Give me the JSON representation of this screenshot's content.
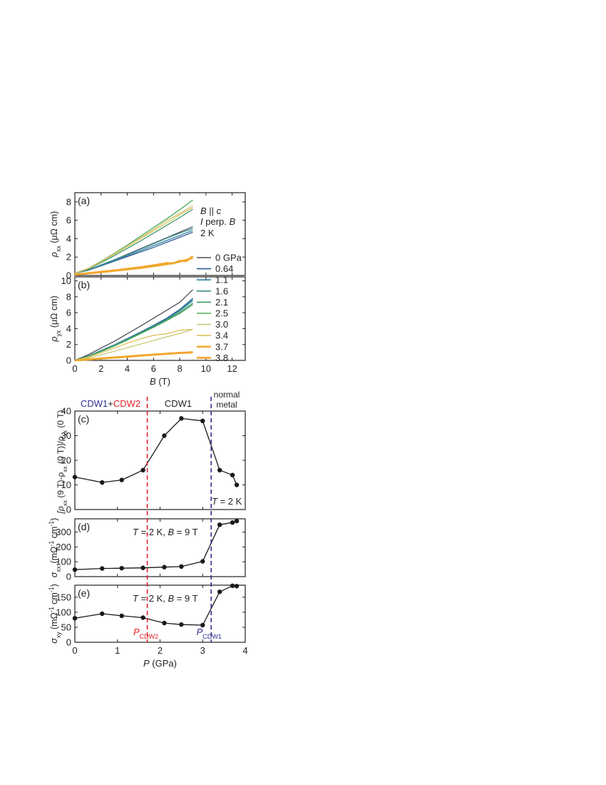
{
  "colors": {
    "axis": "#231f20",
    "red": "#e21f26",
    "blue": "#2e3192",
    "series": [
      "#4d4d5c",
      "#2e5a9c",
      "#2f7fa0",
      "#3a8f8a",
      "#3c9a6a",
      "#4aa85a",
      "#c9c97a",
      "#dcc15a",
      "#ecb03c",
      "#f4a52a"
    ]
  },
  "chart_data": [
    {
      "id": "a",
      "type": "line",
      "panel_label": "(a)",
      "ylabel_parts": [
        "ρ",
        "xx",
        " (μΩ cm)"
      ],
      "xlim": [
        0,
        13
      ],
      "ylim": [
        0,
        9
      ],
      "yticks": [
        0,
        2,
        4,
        6,
        8
      ],
      "annotation_lines": [
        "B || c",
        "I perp. B",
        "2 K"
      ],
      "series": [
        {
          "name": "0 GPa",
          "x": [
            0,
            1,
            2,
            3,
            4,
            5,
            6,
            7,
            8,
            9
          ],
          "y": [
            0.25,
            0.6,
            1.15,
            1.7,
            2.3,
            2.9,
            3.5,
            4.1,
            4.7,
            5.3
          ]
        },
        {
          "name": "0.64",
          "x": [
            0,
            1,
            2,
            3,
            4,
            5,
            6,
            7,
            8,
            9
          ],
          "y": [
            0.25,
            0.55,
            1.05,
            1.55,
            2.05,
            2.55,
            3.05,
            3.6,
            4.15,
            4.7
          ]
        },
        {
          "name": "1.1",
          "x": [
            0,
            1,
            2,
            3,
            4,
            5,
            6,
            7,
            8,
            9
          ],
          "y": [
            0.25,
            0.58,
            1.1,
            1.6,
            2.15,
            2.7,
            3.25,
            3.8,
            4.35,
            4.9
          ]
        },
        {
          "name": "1.6",
          "x": [
            0,
            1,
            2,
            3,
            4,
            5,
            6,
            7,
            8,
            9
          ],
          "y": [
            0.25,
            0.6,
            1.15,
            1.7,
            2.25,
            2.85,
            3.45,
            4.05,
            4.6,
            5.1
          ]
        },
        {
          "name": "2.1",
          "x": [
            0,
            1,
            2,
            3,
            4,
            5,
            6,
            7,
            8,
            9
          ],
          "y": [
            0.25,
            0.7,
            1.4,
            2.15,
            2.95,
            3.75,
            4.6,
            5.45,
            6.3,
            7.2
          ]
        },
        {
          "name": "2.5",
          "x": [
            0,
            1,
            2,
            3,
            4,
            5,
            6,
            7,
            8,
            9
          ],
          "y": [
            0.25,
            0.75,
            1.55,
            2.4,
            3.3,
            4.25,
            5.2,
            6.15,
            7.15,
            8.2
          ]
        },
        {
          "name": "3.0",
          "x": [
            0,
            1,
            2,
            3,
            4,
            5,
            6,
            7,
            8,
            9
          ],
          "y": [
            0.25,
            0.75,
            1.5,
            2.35,
            3.2,
            4.1,
            5.0,
            5.95,
            6.75,
            7.6
          ]
        },
        {
          "name": "3.4",
          "x": [
            0,
            1,
            2,
            3,
            4,
            5,
            6,
            7,
            8,
            9
          ],
          "y": [
            0.25,
            0.75,
            1.5,
            2.3,
            3.15,
            4.0,
            4.85,
            5.7,
            6.6,
            7.4
          ]
        },
        {
          "name": "3.7",
          "x": [
            0,
            1,
            2,
            3,
            4,
            5,
            6,
            7,
            8,
            9
          ],
          "y": [
            0.1,
            0.22,
            0.35,
            0.5,
            0.65,
            0.8,
            1.0,
            1.2,
            1.5,
            1.9
          ]
        },
        {
          "name": "3.8",
          "x": [
            0,
            1,
            2,
            3,
            4,
            5,
            6,
            7,
            7.5,
            8,
            8.5,
            9
          ],
          "y": [
            0.1,
            0.25,
            0.4,
            0.55,
            0.72,
            0.9,
            1.1,
            1.35,
            1.3,
            1.6,
            1.55,
            2.1
          ]
        }
      ]
    },
    {
      "id": "b",
      "type": "line",
      "panel_label": "(b)",
      "ylabel_parts": [
        "ρ",
        "yx",
        " (μΩ cm)"
      ],
      "xlabel_parts": [
        "B",
        " (T)"
      ],
      "xlim": [
        0,
        13
      ],
      "ylim": [
        0,
        10.5
      ],
      "xticks": [
        0,
        2,
        4,
        6,
        8,
        10,
        12
      ],
      "yticks": [
        0,
        2,
        4,
        6,
        8,
        10
      ],
      "series": [
        {
          "name": "0 GPa",
          "x": [
            0,
            1,
            2,
            3,
            4,
            5,
            6,
            7,
            8,
            9
          ],
          "y": [
            0,
            0.7,
            1.55,
            2.4,
            3.35,
            4.3,
            5.3,
            6.3,
            7.3,
            8.9
          ]
        },
        {
          "name": "0.64",
          "x": [
            0,
            1,
            2,
            3,
            4,
            5,
            6,
            7,
            8,
            9
          ],
          "y": [
            0,
            0.55,
            1.25,
            1.95,
            2.75,
            3.55,
            4.4,
            5.3,
            6.4,
            7.8
          ]
        },
        {
          "name": "1.1",
          "x": [
            0,
            1,
            2,
            3,
            4,
            5,
            6,
            7,
            8,
            9
          ],
          "y": [
            0,
            0.55,
            1.2,
            1.9,
            2.7,
            3.5,
            4.35,
            5.2,
            6.3,
            7.7
          ]
        },
        {
          "name": "1.6",
          "x": [
            0,
            1,
            2,
            3,
            4,
            5,
            6,
            7,
            8,
            9
          ],
          "y": [
            0,
            0.55,
            1.2,
            1.9,
            2.65,
            3.45,
            4.3,
            5.15,
            6.2,
            7.5
          ]
        },
        {
          "name": "2.1",
          "x": [
            0,
            1,
            2,
            3,
            4,
            5,
            6,
            7,
            8,
            9
          ],
          "y": [
            0,
            0.5,
            1.15,
            1.85,
            2.6,
            3.4,
            4.2,
            5.05,
            6.0,
            7.2
          ]
        },
        {
          "name": "2.5",
          "x": [
            0,
            1,
            2,
            3,
            4,
            5,
            6,
            7,
            8,
            9
          ],
          "y": [
            0,
            0.5,
            1.1,
            1.8,
            2.55,
            3.35,
            4.15,
            5.0,
            5.9,
            7.0
          ]
        },
        {
          "name": "3.0",
          "x": [
            0,
            1,
            2,
            3,
            4,
            5,
            6,
            7,
            8,
            9
          ],
          "y": [
            0,
            0.3,
            0.7,
            1.15,
            1.6,
            2.05,
            2.5,
            2.95,
            3.4,
            3.9
          ]
        },
        {
          "name": "3.4",
          "x": [
            0,
            1,
            2,
            3,
            4,
            5,
            6,
            7,
            8,
            9
          ],
          "y": [
            0,
            0.4,
            0.95,
            1.55,
            2.15,
            2.7,
            3.15,
            3.35,
            3.8,
            3.9
          ]
        },
        {
          "name": "3.7",
          "x": [
            0,
            1,
            2,
            3,
            4,
            5,
            6,
            7,
            8,
            9
          ],
          "y": [
            0,
            0.12,
            0.25,
            0.38,
            0.5,
            0.62,
            0.74,
            0.85,
            0.95,
            1.05
          ]
        },
        {
          "name": "3.8",
          "x": [
            0,
            1,
            2,
            3,
            4,
            5,
            6,
            7,
            8,
            9
          ],
          "y": [
            0,
            0.1,
            0.22,
            0.34,
            0.46,
            0.58,
            0.7,
            0.82,
            0.93,
            1.0
          ]
        }
      ]
    },
    {
      "id": "c",
      "type": "line",
      "panel_label": "(c)",
      "ylabel_parts": [
        "[ρ",
        "xx",
        " (9 T)-ρ",
        "xx",
        " (0 T)]/ρ",
        "xx",
        " (0 T)"
      ],
      "xlim": [
        0,
        4
      ],
      "ylim": [
        0,
        40
      ],
      "yticks": [
        0,
        10,
        20,
        30,
        40
      ],
      "annotation": "T = 2 K",
      "phase_labels": [
        "CDW1",
        "+",
        "CDW2",
        "CDW1",
        "normal",
        "metal"
      ],
      "series": [
        {
          "name": "",
          "x": [
            0,
            0.64,
            1.1,
            1.6,
            2.1,
            2.5,
            3.0,
            3.4,
            3.7,
            3.8
          ],
          "y": [
            13.2,
            11.0,
            12.0,
            16.0,
            30.0,
            37.0,
            36.0,
            16.0,
            14.0,
            10.0
          ]
        }
      ]
    },
    {
      "id": "d",
      "type": "line",
      "panel_label": "(d)",
      "ylabel_parts": [
        "σ",
        "xx",
        " (mΩ",
        "-1",
        " cm",
        "-1",
        ")"
      ],
      "xlim": [
        0,
        4
      ],
      "ylim": [
        0,
        390
      ],
      "yticks": [
        0,
        100,
        200,
        300
      ],
      "annotation": "T = 2 K, B = 9 T",
      "series": [
        {
          "name": "",
          "x": [
            0,
            0.64,
            1.1,
            1.6,
            2.1,
            2.5,
            3.0,
            3.4,
            3.7,
            3.8
          ],
          "y": [
            47,
            55,
            57,
            59,
            64,
            68,
            103,
            350,
            365,
            375
          ]
        }
      ]
    },
    {
      "id": "e",
      "type": "line",
      "panel_label": "(e)",
      "ylabel_parts": [
        "σ",
        "xy",
        " (mΩ",
        "-1",
        " cm",
        "-1",
        ")"
      ],
      "xlabel_parts": [
        "P",
        " (GPa)"
      ],
      "xlim": [
        0,
        4
      ],
      "ylim": [
        0,
        190
      ],
      "xticks": [
        0,
        1,
        2,
        3,
        4
      ],
      "yticks": [
        0,
        50,
        100,
        150
      ],
      "annotation": "T = 2 K, B = 9 T",
      "markers": [
        {
          "label_main": "P",
          "label_sub": "CDW2",
          "x": 1.7,
          "color": "#e21f26"
        },
        {
          "label_main": "P",
          "label_sub": "CDW1",
          "x": 3.2,
          "color": "#2e3192"
        }
      ],
      "series": [
        {
          "name": "",
          "x": [
            0,
            0.64,
            1.1,
            1.6,
            2.1,
            2.5,
            3.0,
            3.4,
            3.7,
            3.8
          ],
          "y": [
            80,
            95,
            88,
            82,
            64,
            59,
            57,
            168,
            188,
            187
          ]
        }
      ]
    }
  ]
}
